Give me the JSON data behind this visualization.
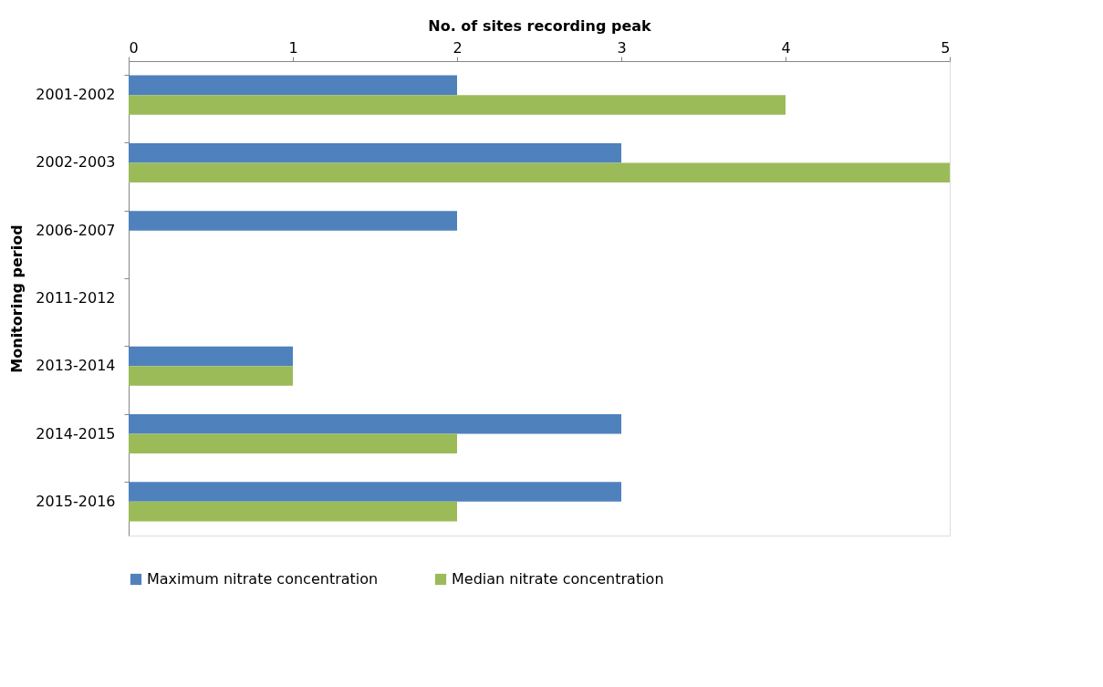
{
  "chart_data": {
    "type": "bar",
    "orientation": "horizontal",
    "xlabel": "No. of sites recording peak",
    "ylabel": "Monitoring period",
    "categories": [
      "2001-2002",
      "2002-2003",
      "2006-2007",
      "2011-2012",
      "2013-2014",
      "2014-2015",
      "2015-2016"
    ],
    "series": [
      {
        "name": "Maximum nitrate concentration",
        "color": "#4f81bd",
        "values": [
          2,
          3,
          2,
          0,
          1,
          3,
          3
        ]
      },
      {
        "name": "Median nitrate concentration",
        "color": "#9bbb59",
        "values": [
          4,
          5,
          0,
          0,
          1,
          2,
          2
        ]
      }
    ],
    "xlim": [
      0,
      5
    ],
    "xticks": [
      0,
      1,
      2,
      3,
      4,
      5
    ],
    "grid": false,
    "legend": "bottom"
  }
}
